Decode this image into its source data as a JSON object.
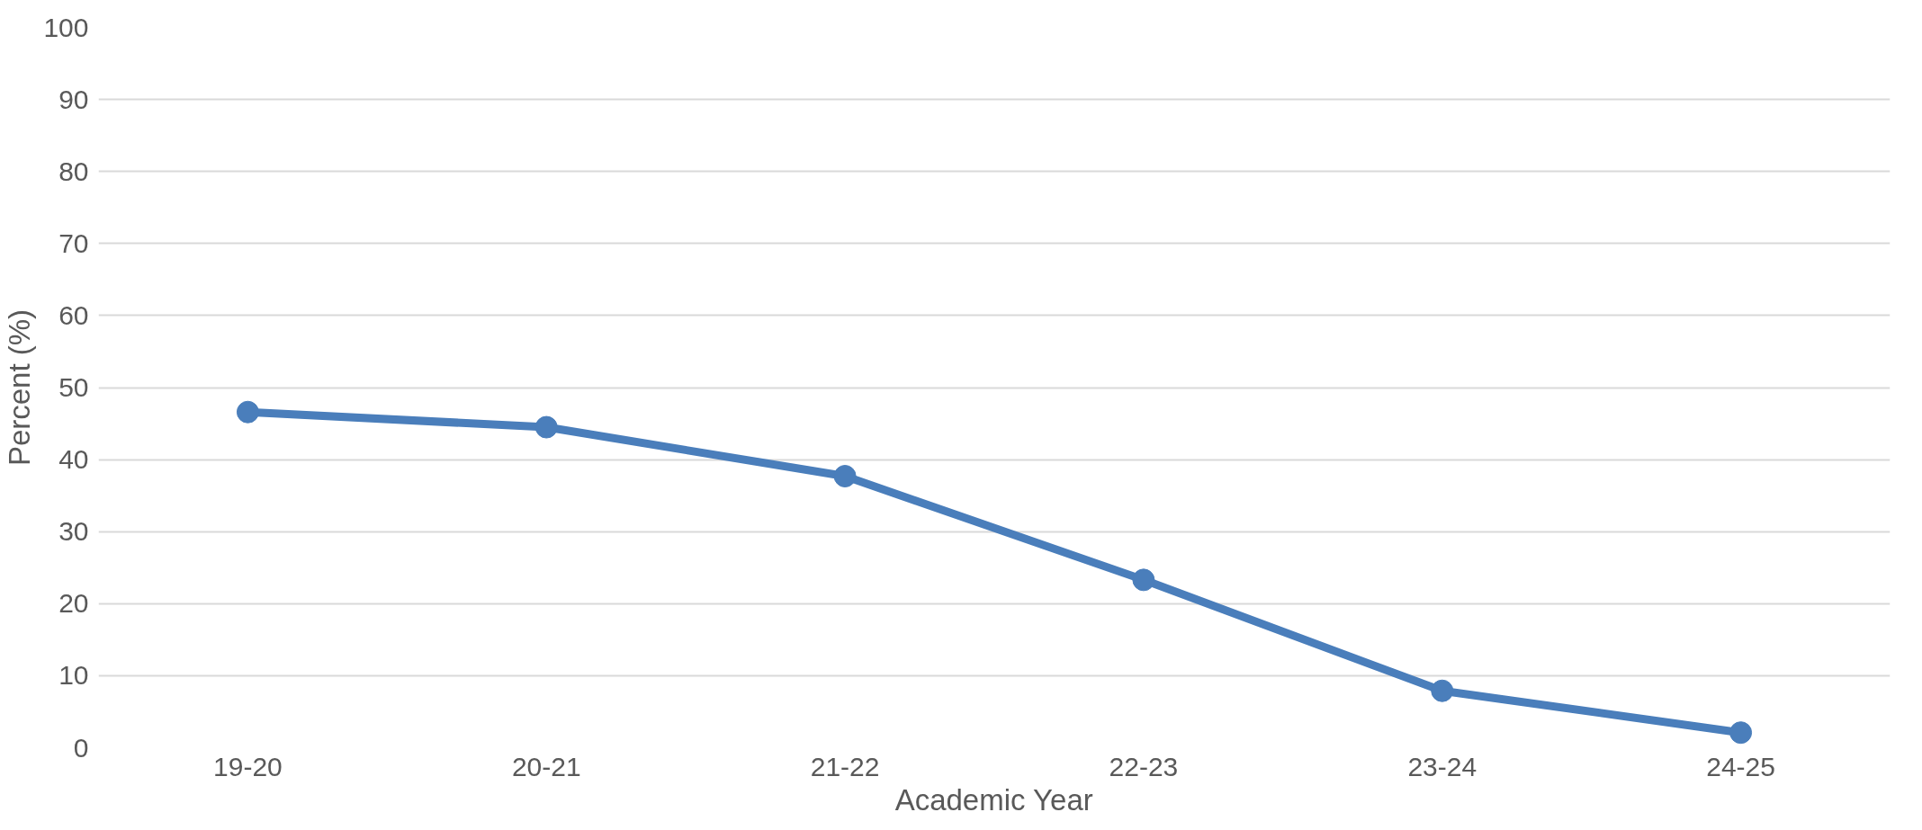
{
  "chart_data": {
    "type": "line",
    "xlabel": "Academic Year",
    "ylabel": "Percent (%)",
    "categories": [
      "19-20",
      "20-21",
      "21-22",
      "22-23",
      "23-24",
      "24-25"
    ],
    "series": [
      {
        "color": "#4a7ebb",
        "values": [
          46.6,
          44.5,
          37.7,
          23.3,
          7.9,
          2.1
        ]
      }
    ],
    "ylim": [
      0,
      100
    ],
    "yticks": [
      0,
      10,
      20,
      30,
      40,
      50,
      60,
      70,
      80,
      90,
      100
    ],
    "grid": "y",
    "marker": "circle",
    "line_style": "solid"
  }
}
